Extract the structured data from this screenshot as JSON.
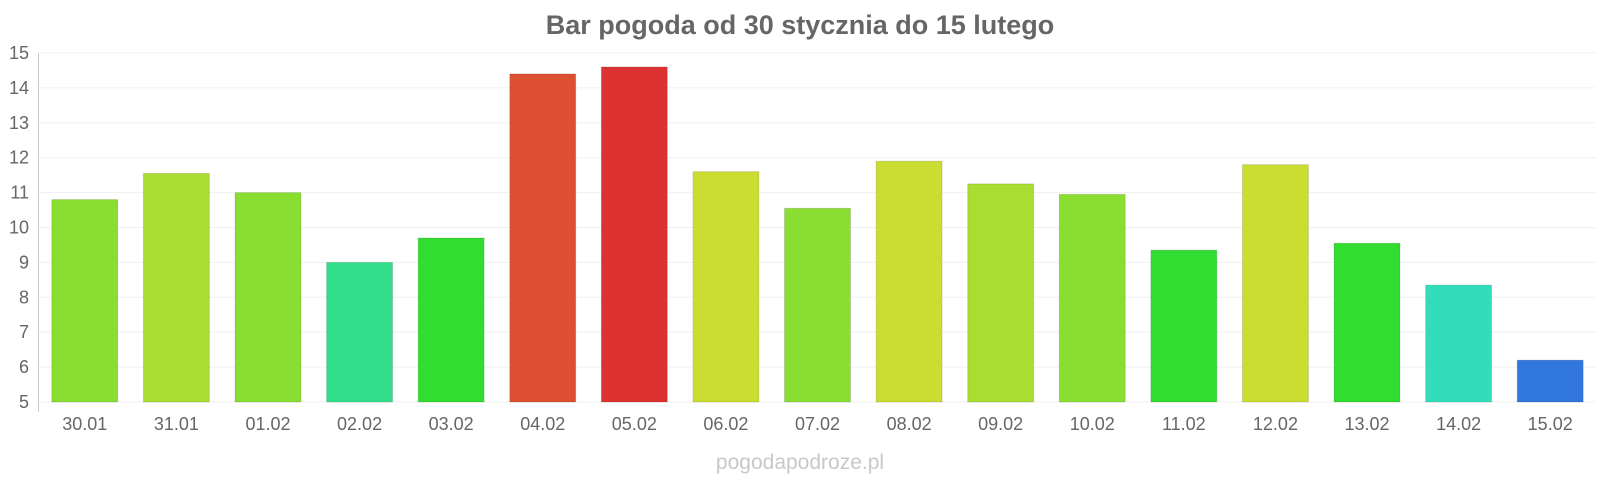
{
  "chart_data": {
    "type": "bar",
    "title": "Bar pogoda od 30 stycznia do 15 lutego",
    "xlabel": "",
    "ylabel": "",
    "ylim": [
      5,
      15
    ],
    "yticks": [
      "5",
      "6",
      "7",
      "8",
      "9",
      "10",
      "11",
      "12",
      "13",
      "14",
      "15"
    ],
    "grid": true,
    "categories": [
      "30.01",
      "31.01",
      "01.02",
      "02.02",
      "03.02",
      "04.02",
      "05.02",
      "06.02",
      "07.02",
      "08.02",
      "09.02",
      "10.02",
      "11.02",
      "12.02",
      "13.02",
      "14.02",
      "15.02"
    ],
    "values": [
      10.8,
      11.55,
      11.0,
      9.0,
      9.7,
      14.4,
      14.6,
      11.6,
      10.55,
      11.9,
      11.25,
      10.95,
      9.35,
      11.8,
      9.55,
      8.35,
      6.2
    ],
    "colors": [
      "#8ade32",
      "#aadd32",
      "#8ade32",
      "#32dd8a",
      "#32dd32",
      "#dd5032",
      "#dd3232",
      "#ccdd32",
      "#8ade32",
      "#ccdd32",
      "#aadd32",
      "#8ade32",
      "#32dd32",
      "#ccdd32",
      "#32dd32",
      "#32ddbb",
      "#3277dd"
    ]
  },
  "watermark": "pogodapodroze.pl"
}
